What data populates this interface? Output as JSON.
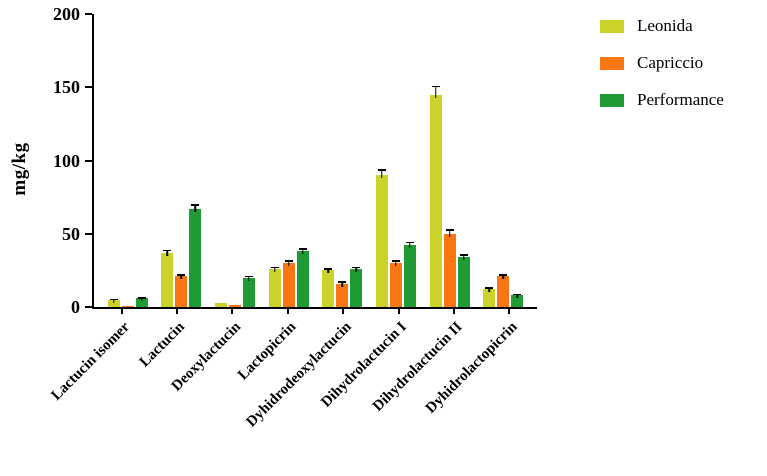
{
  "chart_data": {
    "type": "bar",
    "title": "",
    "xlabel": "",
    "ylabel": "mg/kg",
    "ylim": [
      0,
      200
    ],
    "yticks": [
      0,
      50,
      100,
      150,
      200
    ],
    "grid": false,
    "legend_position": "top-right",
    "categories": [
      "Lactucin isomer",
      "Lactucin",
      "Deoxylactucin",
      "Lactopicrin",
      "Dyhidrodeoxylactucin",
      "Dihydrolactucin I",
      "Dihydrolactucin II",
      "Dyhidrolactopicrin"
    ],
    "series": [
      {
        "name": "Leonida",
        "color": "#cbd32b",
        "values": [
          5,
          37,
          3,
          26,
          25,
          90,
          145,
          12
        ],
        "errors": [
          0.8,
          2,
          0.5,
          1.5,
          1.5,
          4,
          6,
          1.5
        ]
      },
      {
        "name": "Capriccio",
        "color": "#f97612",
        "values": [
          1,
          21,
          1.5,
          30,
          16,
          30,
          50,
          21
        ],
        "errors": [
          0.3,
          1.5,
          0.4,
          2,
          1.5,
          2,
          3,
          1.5
        ]
      },
      {
        "name": "Performance",
        "color": "#1f9a35",
        "values": [
          6,
          67,
          20,
          38,
          26,
          42,
          34,
          8
        ],
        "errors": [
          0.8,
          3,
          1.5,
          2,
          1.5,
          2.5,
          2,
          1
        ]
      }
    ]
  }
}
